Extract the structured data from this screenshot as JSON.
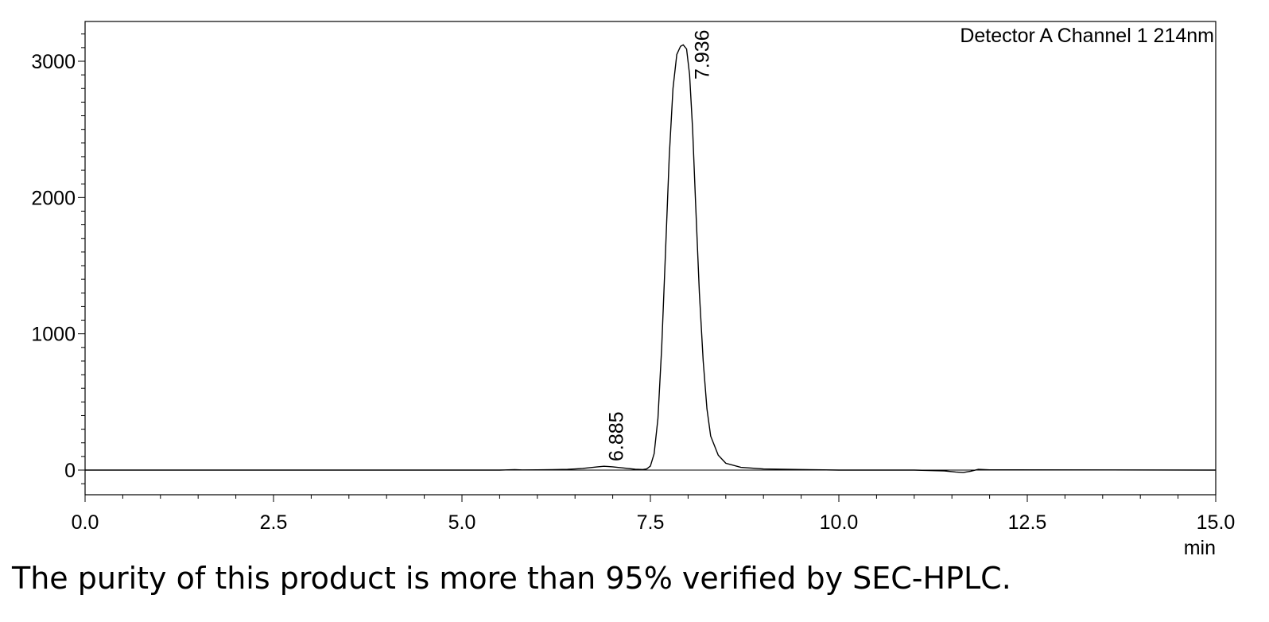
{
  "chart_data": {
    "type": "line",
    "title": "",
    "xlabel": "min",
    "ylabel": "",
    "xlim": [
      0.0,
      15.0
    ],
    "ylim": [
      -180,
      3290
    ],
    "x_ticks": [
      "0.0",
      "2.5",
      "5.0",
      "7.5",
      "10.0",
      "12.5",
      "15.0"
    ],
    "y_ticks": [
      "0",
      "1000",
      "2000",
      "3000"
    ],
    "detector_label": "Detector A Channel 1 214nm",
    "grid": false,
    "series": [
      {
        "x": [
          0.0,
          5.5,
          5.7,
          5.8,
          6.0,
          6.2,
          6.4,
          6.5,
          6.6,
          6.7,
          6.8,
          6.885,
          7.0,
          7.1,
          7.2,
          7.3,
          7.4,
          7.45,
          7.5,
          7.55,
          7.6,
          7.65,
          7.7,
          7.75,
          7.8,
          7.85,
          7.9,
          7.936,
          7.98,
          8.02,
          8.06,
          8.1,
          8.15,
          8.2,
          8.25,
          8.3,
          8.4,
          8.5,
          8.7,
          9.0,
          9.5,
          10.0,
          11.0,
          11.4,
          11.55,
          11.65,
          11.75,
          11.85,
          12.0,
          15.0
        ],
        "y": [
          0,
          0,
          3,
          1,
          2,
          3,
          5,
          8,
          12,
          18,
          24,
          28,
          24,
          18,
          12,
          6,
          4,
          8,
          30,
          120,
          380,
          900,
          1600,
          2300,
          2800,
          3050,
          3110,
          3120,
          3090,
          2900,
          2500,
          1950,
          1300,
          800,
          450,
          250,
          110,
          50,
          20,
          8,
          4,
          0,
          0,
          -6,
          -14,
          -18,
          -8,
          5,
          2,
          0
        ]
      }
    ],
    "peaks": [
      {
        "x": 6.885,
        "label": "6.885"
      },
      {
        "x": 7.936,
        "label": "7.936"
      }
    ]
  },
  "caption": "The purity of this product is more than 95% verified by SEC-HPLC."
}
